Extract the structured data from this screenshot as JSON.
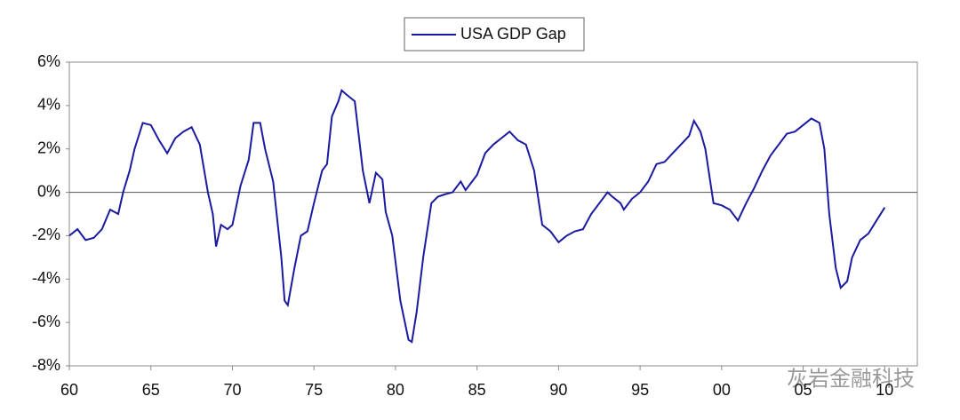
{
  "chart_data": {
    "type": "line",
    "series": [
      {
        "name": "USA GDP Gap",
        "color": "#1a1aa0",
        "x": [
          1960,
          1960.5,
          1961,
          1961.5,
          1962,
          1962.5,
          1963,
          1963.3,
          1963.7,
          1964,
          1964.5,
          1965,
          1965.5,
          1966,
          1966.5,
          1967,
          1967.5,
          1968,
          1968.5,
          1968.8,
          1969,
          1969.3,
          1969.7,
          1970,
          1970.5,
          1971,
          1971.3,
          1971.7,
          1972,
          1972.5,
          1973,
          1973.2,
          1973.4,
          1973.8,
          1974.2,
          1974.6,
          1975,
          1975.5,
          1975.8,
          1976.1,
          1976.5,
          1976.7,
          1977,
          1977.5,
          1978,
          1978.4,
          1978.8,
          1979.2,
          1979.4,
          1979.8,
          1980.3,
          1980.8,
          1981,
          1981.3,
          1981.7,
          1982.2,
          1982.6,
          1983,
          1983.5,
          1984,
          1984.3,
          1985,
          1985.5,
          1986,
          1986.5,
          1987,
          1987.5,
          1988,
          1988.5,
          1989,
          1989.5,
          1990,
          1990.5,
          1991,
          1991.5,
          1992,
          1992.5,
          1993,
          1993.3,
          1993.8,
          1994,
          1994.5,
          1995,
          1995.5,
          1996,
          1996.5,
          1997,
          1997.5,
          1998,
          1998.3,
          1998.7,
          1999,
          1999.5,
          2000,
          2000.5,
          2001,
          2001.5,
          2002,
          2002.5,
          2003,
          2003.5,
          2004,
          2004.5,
          2005,
          2005.5,
          2006,
          2006.3,
          2006.6,
          2007,
          2007.3,
          2007.7,
          2008,
          2008.5,
          2009,
          2009.5,
          2010
        ],
        "values": [
          -2.0,
          -1.7,
          -2.2,
          -2.1,
          -1.7,
          -0.8,
          -1.0,
          0.0,
          1.0,
          2.0,
          3.2,
          3.1,
          2.4,
          1.8,
          2.5,
          2.8,
          3.0,
          2.2,
          0.0,
          -1.0,
          -2.5,
          -1.5,
          -1.7,
          -1.5,
          0.3,
          1.5,
          3.2,
          3.2,
          2.0,
          0.5,
          -3.0,
          -5.0,
          -5.2,
          -3.5,
          -2.0,
          -1.8,
          -0.5,
          1.0,
          1.3,
          3.5,
          4.2,
          4.7,
          4.5,
          4.2,
          1.0,
          -0.5,
          0.9,
          0.6,
          -0.9,
          -2.0,
          -5.0,
          -6.8,
          -6.9,
          -5.5,
          -3.0,
          -0.5,
          -0.2,
          -0.1,
          0.0,
          0.5,
          0.1,
          0.8,
          1.8,
          2.2,
          2.5,
          2.8,
          2.4,
          2.2,
          1.0,
          -1.5,
          -1.8,
          -2.3,
          -2.0,
          -1.8,
          -1.7,
          -1.0,
          -0.5,
          0.0,
          -0.2,
          -0.5,
          -0.8,
          -0.3,
          0.0,
          0.5,
          1.3,
          1.4,
          1.8,
          2.2,
          2.6,
          3.3,
          2.8,
          2.0,
          -0.5,
          -0.6,
          -0.8,
          -1.3,
          -0.5,
          0.2,
          1.0,
          1.7,
          2.2,
          2.7,
          2.8,
          3.1,
          3.4,
          3.2,
          2.0,
          -1.0,
          -3.5,
          -4.4,
          -4.1,
          -3.0,
          -2.2,
          -1.9,
          -1.3,
          -0.7
        ]
      }
    ],
    "xlim": [
      1960,
      2012
    ],
    "xticks": [
      {
        "value": 1960,
        "label": "60"
      },
      {
        "value": 1965,
        "label": "65"
      },
      {
        "value": 1970,
        "label": "70"
      },
      {
        "value": 1975,
        "label": "75"
      },
      {
        "value": 1980,
        "label": "80"
      },
      {
        "value": 1985,
        "label": "85"
      },
      {
        "value": 1990,
        "label": "90"
      },
      {
        "value": 1995,
        "label": "95"
      },
      {
        "value": 2000,
        "label": "00"
      },
      {
        "value": 2005,
        "label": "05"
      },
      {
        "value": 2010,
        "label": "10"
      }
    ],
    "ylim": [
      -8,
      6
    ],
    "yticks": [
      {
        "value": -8,
        "label": "-8%"
      },
      {
        "value": -6,
        "label": "-6%"
      },
      {
        "value": -4,
        "label": "-4%"
      },
      {
        "value": -2,
        "label": "-2%"
      },
      {
        "value": 0,
        "label": "0%"
      },
      {
        "value": 2,
        "label": "2%"
      },
      {
        "value": 4,
        "label": "4%"
      },
      {
        "value": 6,
        "label": "6%"
      }
    ],
    "zero_line": true,
    "watermark": "灰岩金融科技"
  }
}
